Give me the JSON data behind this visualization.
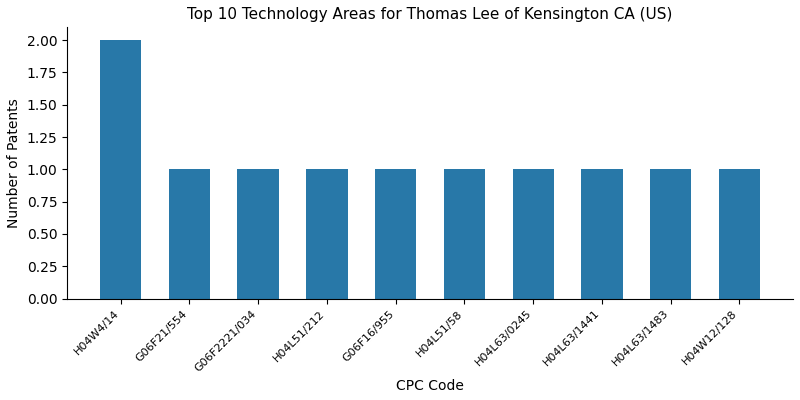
{
  "title": "Top 10 Technology Areas for Thomas Lee of Kensington CA (US)",
  "xlabel": "CPC Code",
  "ylabel": "Number of Patents",
  "categories": [
    "H04W4/14",
    "G06F21/554",
    "G06F2221/034",
    "H04L51/212",
    "G06F16/955",
    "H04L51/58",
    "H04L63/0245",
    "H04L63/1441",
    "H04L63/1483",
    "H04W12/128"
  ],
  "values": [
    2,
    1,
    1,
    1,
    1,
    1,
    1,
    1,
    1,
    1
  ],
  "bar_color": "#2878a8",
  "ylim": [
    0,
    2.1
  ],
  "figsize": [
    8.0,
    4.0
  ],
  "dpi": 100,
  "title_fontsize": 11,
  "axis_label_fontsize": 10,
  "tick_fontsize": 8,
  "bar_width": 0.6
}
